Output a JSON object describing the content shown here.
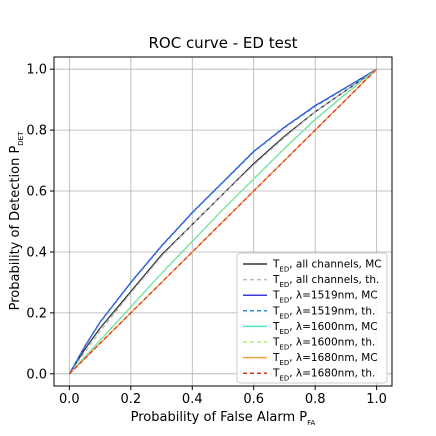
{
  "chart_data": {
    "type": "line",
    "title": "ROC curve - ED test",
    "xlabel": {
      "main": "Probability of False Alarm P",
      "sub": "FA"
    },
    "ylabel": {
      "main": "Probability of Detection P",
      "sub": "DET"
    },
    "xlim": [
      -0.05,
      1.05
    ],
    "ylim": [
      -0.04,
      1.04
    ],
    "xticks": [
      "0.0",
      "0.2",
      "0.4",
      "0.6",
      "0.8",
      "1.0"
    ],
    "yticks": [
      "0.0",
      "0.2",
      "0.4",
      "0.6",
      "0.8",
      "1.0"
    ],
    "grid": true,
    "legend_position": "bottom-right",
    "series": [
      {
        "name": "T_ED, all channels, MC",
        "label_pre": "T",
        "label_sub": "ED",
        "label_post": ", all channels, MC",
        "color": "#333333",
        "dash": "solid",
        "x": [
          0,
          0.05,
          0.1,
          0.2,
          0.3,
          0.4,
          0.5,
          0.6,
          0.7,
          0.8,
          0.9,
          1.0
        ],
        "y": [
          0,
          0.08,
          0.15,
          0.27,
          0.39,
          0.49,
          0.59,
          0.69,
          0.78,
          0.86,
          0.93,
          1.0
        ]
      },
      {
        "name": "T_ED, all channels, th.",
        "label_pre": "T",
        "label_sub": "ED",
        "label_post": ", all channels, th.",
        "color": "#bbbbbb",
        "dash": "4,3",
        "x": [
          0,
          0.05,
          0.1,
          0.2,
          0.3,
          0.4,
          0.5,
          0.6,
          0.7,
          0.8,
          0.9,
          1.0
        ],
        "y": [
          0,
          0.07,
          0.14,
          0.265,
          0.385,
          0.49,
          0.59,
          0.685,
          0.775,
          0.86,
          0.93,
          1.0
        ]
      },
      {
        "name": "T_ED, λ=1519nm, MC",
        "label_pre": "T",
        "label_sub": "ED",
        "label_post": ", λ=1519nm, MC",
        "color": "#3a3ad8",
        "dash": "solid",
        "x": [
          0,
          0.05,
          0.1,
          0.2,
          0.3,
          0.4,
          0.5,
          0.6,
          0.7,
          0.8,
          0.9,
          1.0
        ],
        "y": [
          0,
          0.09,
          0.17,
          0.3,
          0.42,
          0.53,
          0.63,
          0.73,
          0.81,
          0.88,
          0.94,
          1.0
        ]
      },
      {
        "name": "T_ED, λ=1519nm, th.",
        "label_pre": "T",
        "label_sub": "ED",
        "label_post": ", λ=1519nm, th.",
        "color": "#2a8fd0",
        "dash": "4,3",
        "x": [
          0,
          0.05,
          0.1,
          0.2,
          0.3,
          0.4,
          0.5,
          0.6,
          0.7,
          0.8,
          0.9,
          1.0
        ],
        "y": [
          0,
          0.088,
          0.168,
          0.298,
          0.418,
          0.528,
          0.628,
          0.728,
          0.808,
          0.878,
          0.938,
          1.0
        ]
      },
      {
        "name": "T_ED, λ=1600nm, MC",
        "label_pre": "T",
        "label_sub": "ED",
        "label_post": ", λ=1600nm, MC",
        "color": "#55e0c0",
        "dash": "solid",
        "x": [
          0,
          0.1,
          0.2,
          0.3,
          0.4,
          0.5,
          0.6,
          0.7,
          0.8,
          0.9,
          1.0
        ],
        "y": [
          0,
          0.11,
          0.22,
          0.33,
          0.435,
          0.54,
          0.64,
          0.74,
          0.835,
          0.92,
          1.0
        ]
      },
      {
        "name": "T_ED, λ=1600nm, th.",
        "label_pre": "T",
        "label_sub": "ED",
        "label_post": ", λ=1600nm, th.",
        "color": "#b8e68a",
        "dash": "4,3",
        "x": [
          0,
          0.1,
          0.2,
          0.3,
          0.4,
          0.5,
          0.6,
          0.7,
          0.8,
          0.9,
          1.0
        ],
        "y": [
          0,
          0.108,
          0.218,
          0.328,
          0.433,
          0.538,
          0.638,
          0.738,
          0.833,
          0.918,
          1.0
        ]
      },
      {
        "name": "T_ED, λ=1680nm, MC",
        "label_pre": "T",
        "label_sub": "ED",
        "label_post": ", λ=1680nm, MC",
        "color": "#f0a040",
        "dash": "solid",
        "x": [
          0,
          0.2,
          0.4,
          0.6,
          0.8,
          1.0
        ],
        "y": [
          0,
          0.2,
          0.4,
          0.6,
          0.8,
          1.0
        ]
      },
      {
        "name": "T_ED, λ=1680nm, th.",
        "label_pre": "T",
        "label_sub": "ED",
        "label_post": ", λ=1680nm, th.",
        "color": "#e03020",
        "dash": "4,3",
        "x": [
          0,
          0.2,
          0.4,
          0.6,
          0.8,
          1.0
        ],
        "y": [
          0,
          0.2,
          0.4,
          0.6,
          0.8,
          1.0
        ]
      }
    ]
  }
}
